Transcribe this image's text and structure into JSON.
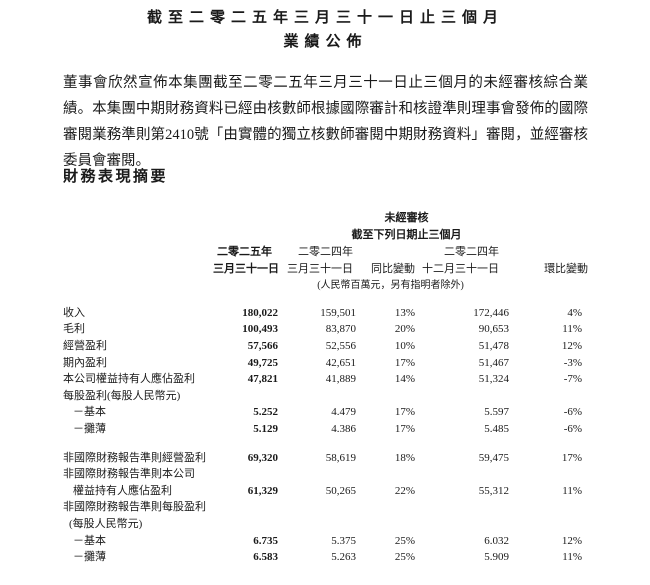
{
  "title": {
    "line1": "截至二零二五年三月三十一日止三個月",
    "line2": "業績公佈"
  },
  "intro": "董事會欣然宣佈本集團截至二零二五年三月三十一日止三個月的未經審核綜合業績。本集團中期財務資料已經由核數師根據國際審計和核證準則理事會發佈的國際審閱業務準則第2410號「由實體的獨立核數師審閱中期財務資料」審閱，並經審核委員會審閱。",
  "section_heading": "財務表現摘要",
  "table": {
    "header": {
      "unaudited": "未經審核",
      "period_note": "截至下列日期止三個月",
      "col_2025_line1": "二零二五年",
      "col_2025_line2": "三月三十一日",
      "col_2024mar_line1": "二零二四年",
      "col_2024mar_line2": "三月三十一日",
      "col_yoy": "同比變動",
      "col_2024dec_line1": "二零二四年",
      "col_2024dec_line2": "十二月三十一日",
      "col_qoq": "環比變動",
      "currency_note": "(人民幣百萬元，另有指明者除外)"
    },
    "columns": [
      "label",
      "2025-mar-31",
      "2024-mar-31",
      "yoy-change",
      "2024-dec-31",
      "qoq-change"
    ],
    "rows": [
      {
        "label": "收入",
        "values": [
          "180,022",
          "159,501",
          "13%",
          "172,446",
          "4%"
        ]
      },
      {
        "label": "毛利",
        "values": [
          "100,493",
          "83,870",
          "20%",
          "90,653",
          "11%"
        ]
      },
      {
        "label": "經營盈利",
        "values": [
          "57,566",
          "52,556",
          "10%",
          "51,478",
          "12%"
        ]
      },
      {
        "label": "期內盈利",
        "values": [
          "49,725",
          "42,651",
          "17%",
          "51,467",
          "-3%"
        ]
      },
      {
        "label": "本公司權益持有人應佔盈利",
        "values": [
          "47,821",
          "41,889",
          "14%",
          "51,324",
          "-7%"
        ]
      },
      {
        "label": "每股盈利(每股人民幣元)",
        "values": [
          "",
          "",
          "",
          "",
          ""
        ]
      },
      {
        "label": "－基本",
        "indent": 2,
        "values": [
          "5.252",
          "4.479",
          "17%",
          "5.597",
          "-6%"
        ]
      },
      {
        "label": "－攤薄",
        "indent": 2,
        "values": [
          "5.129",
          "4.386",
          "17%",
          "5.485",
          "-6%"
        ]
      },
      {
        "spacer": true
      },
      {
        "label": "非國際財務報告準則經營盈利",
        "values": [
          "69,320",
          "58,619",
          "18%",
          "59,475",
          "17%"
        ]
      },
      {
        "label": "非國際財務報告準則本公司",
        "values": [
          "",
          "",
          "",
          "",
          ""
        ]
      },
      {
        "label": "權益持有人應佔盈利",
        "indent": 2,
        "values": [
          "61,329",
          "50,265",
          "22%",
          "55,312",
          "11%"
        ]
      },
      {
        "label": "非國際財務報告準則每股盈利",
        "values": [
          "",
          "",
          "",
          "",
          ""
        ]
      },
      {
        "label": "(每股人民幣元)",
        "indent": 1,
        "values": [
          "",
          "",
          "",
          "",
          ""
        ]
      },
      {
        "label": "－基本",
        "indent": 2,
        "values": [
          "6.735",
          "5.375",
          "25%",
          "6.032",
          "12%"
        ]
      },
      {
        "label": "－攤薄",
        "indent": 2,
        "values": [
          "6.583",
          "5.263",
          "25%",
          "5.909",
          "11%"
        ]
      }
    ]
  }
}
